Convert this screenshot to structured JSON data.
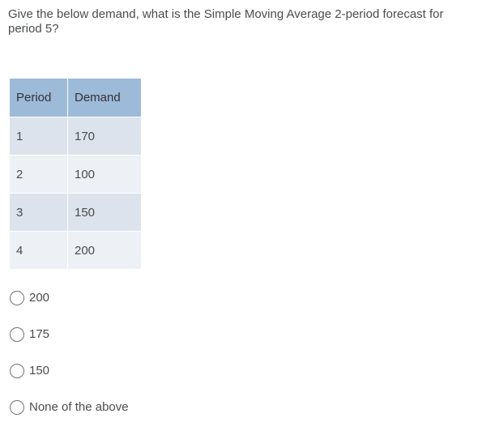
{
  "question": {
    "text": "Give the below demand, what is the Simple Moving Average 2-period forecast for period 5?"
  },
  "table": {
    "headers": [
      "Period",
      "Demand"
    ],
    "rows": [
      {
        "period": "1",
        "demand": "170"
      },
      {
        "period": "2",
        "demand": "100"
      },
      {
        "period": "3",
        "demand": "150"
      },
      {
        "period": "4",
        "demand": "200"
      }
    ]
  },
  "options": [
    {
      "label": "200"
    },
    {
      "label": "175"
    },
    {
      "label": "150"
    },
    {
      "label": "None of the above"
    }
  ],
  "colors": {
    "header_bg": "#9dbad9",
    "row_odd_bg": "#dde3ed",
    "row_even_bg": "#edf1f6",
    "text": "#494c4e"
  }
}
